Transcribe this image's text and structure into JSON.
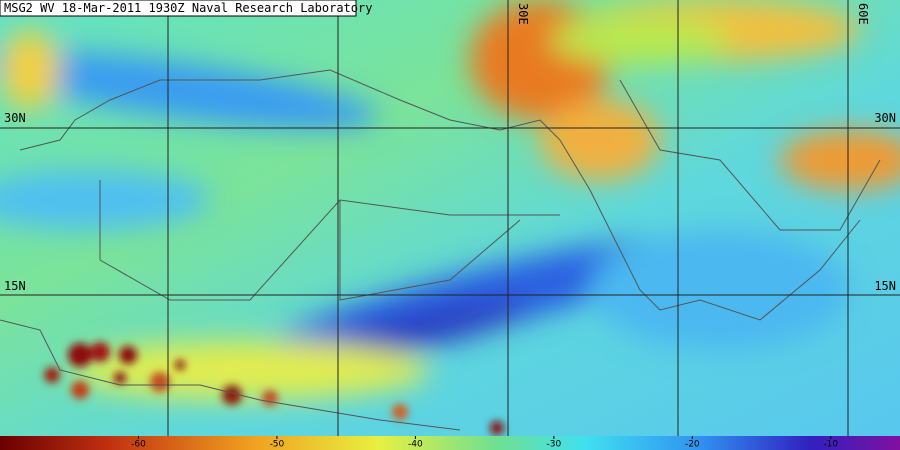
{
  "header": {
    "title": "MSG2 WV 18-Mar-2011 1930Z Naval Research Laboratory"
  },
  "lon_labels": [
    "30E",
    "60E"
  ],
  "lat_labels": [
    "30N",
    "15N"
  ],
  "colorbar": {
    "range": [
      -70,
      -5
    ],
    "ticks": [
      -60,
      -50,
      -40,
      -30,
      -20,
      -10
    ]
  }
}
